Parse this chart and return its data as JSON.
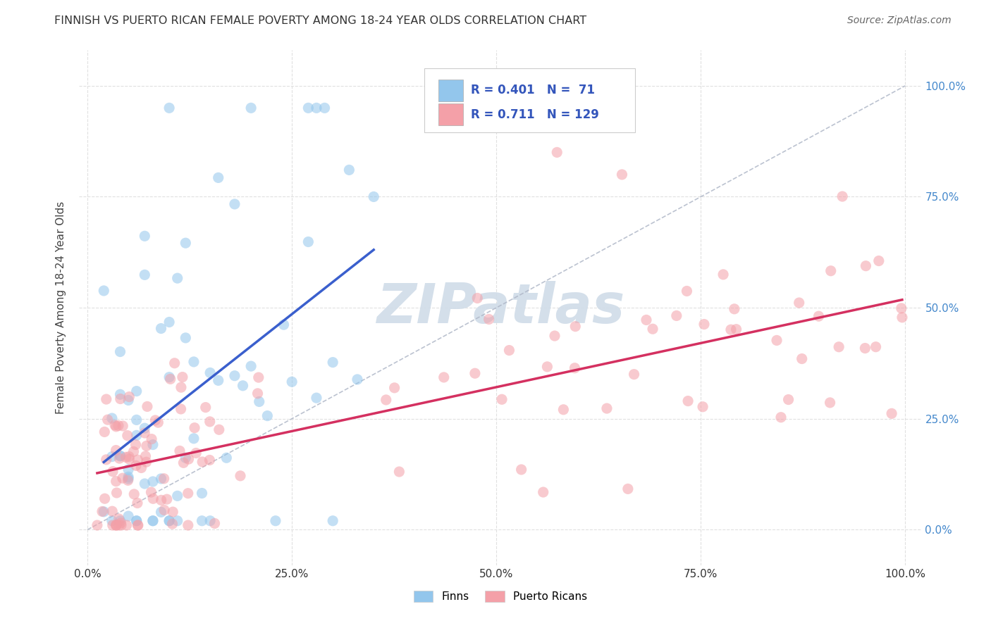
{
  "title": "FINNISH VS PUERTO RICAN FEMALE POVERTY AMONG 18-24 YEAR OLDS CORRELATION CHART",
  "source": "Source: ZipAtlas.com",
  "ylabel": "Female Poverty Among 18-24 Year Olds",
  "xlim": [
    -0.01,
    1.02
  ],
  "ylim": [
    -0.08,
    1.08
  ],
  "x_ticks": [
    0.0,
    0.25,
    0.5,
    0.75,
    1.0
  ],
  "x_tick_labels": [
    "0.0%",
    "25.0%",
    "50.0%",
    "75.0%",
    "100.0%"
  ],
  "y_ticks": [
    0.0,
    0.25,
    0.5,
    0.75,
    1.0
  ],
  "y_tick_labels": [
    "0.0%",
    "25.0%",
    "50.0%",
    "75.0%",
    "100.0%"
  ],
  "finns_R": 0.401,
  "finns_N": 71,
  "puerto_R": 0.711,
  "puerto_N": 129,
  "background_color": "#ffffff",
  "grid_color": "#e0e0e0",
  "finns_color": "#93C6EC",
  "puerto_color": "#F4A0A8",
  "trend_finns_color": "#3A5FCD",
  "trend_puerto_color": "#D43060",
  "diag_color": "#b0b8c8",
  "watermark_color": "#d0dce8",
  "ytick_color": "#4488cc",
  "xtick_color": "#333333"
}
